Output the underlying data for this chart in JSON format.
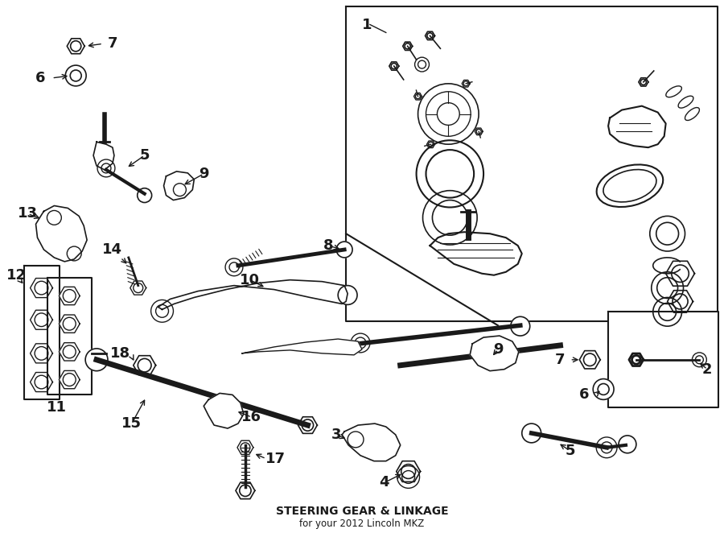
{
  "title": "STEERING GEAR & LINKAGE",
  "subtitle": "for your 2012 Lincoln MKZ",
  "bg_color": "#ffffff",
  "line_color": "#1a1a1a",
  "title_fontsize": 10,
  "subtitle_fontsize": 8.5,
  "label_fontsize": 13,
  "figsize": [
    9.0,
    6.62
  ],
  "dpi": 100
}
